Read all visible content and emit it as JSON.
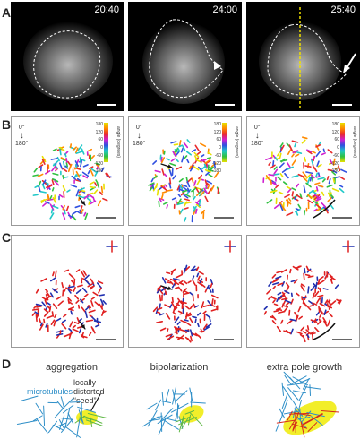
{
  "panels": {
    "a": "A",
    "b": "B",
    "c": "C",
    "d": "D"
  },
  "row_a": {
    "timestamps": [
      "20:40",
      "24:00",
      "25:40"
    ]
  },
  "row_b": {
    "axis_top": "0°",
    "axis_bottom": "180°",
    "colorbar_ticks": [
      "180",
      "120",
      "60",
      "0",
      "-60",
      "-120",
      "-180"
    ],
    "colorbar_label": "angle (degrees)"
  },
  "row_d": {
    "titles": [
      "aggregation",
      "bipolarization",
      "extra pole growth"
    ],
    "label_microtubules": "microtubules",
    "label_seed_lines": [
      "locally",
      "distorted",
      "“seed”"
    ]
  },
  "colors": {
    "mt_blue": "#2f8fc8",
    "seed_yellow": "#f2ee2a",
    "seed_green": "#5fb845",
    "arrow_red": "#d42a1a",
    "c_red": "#e02020",
    "c_blue": "#2030b0"
  }
}
